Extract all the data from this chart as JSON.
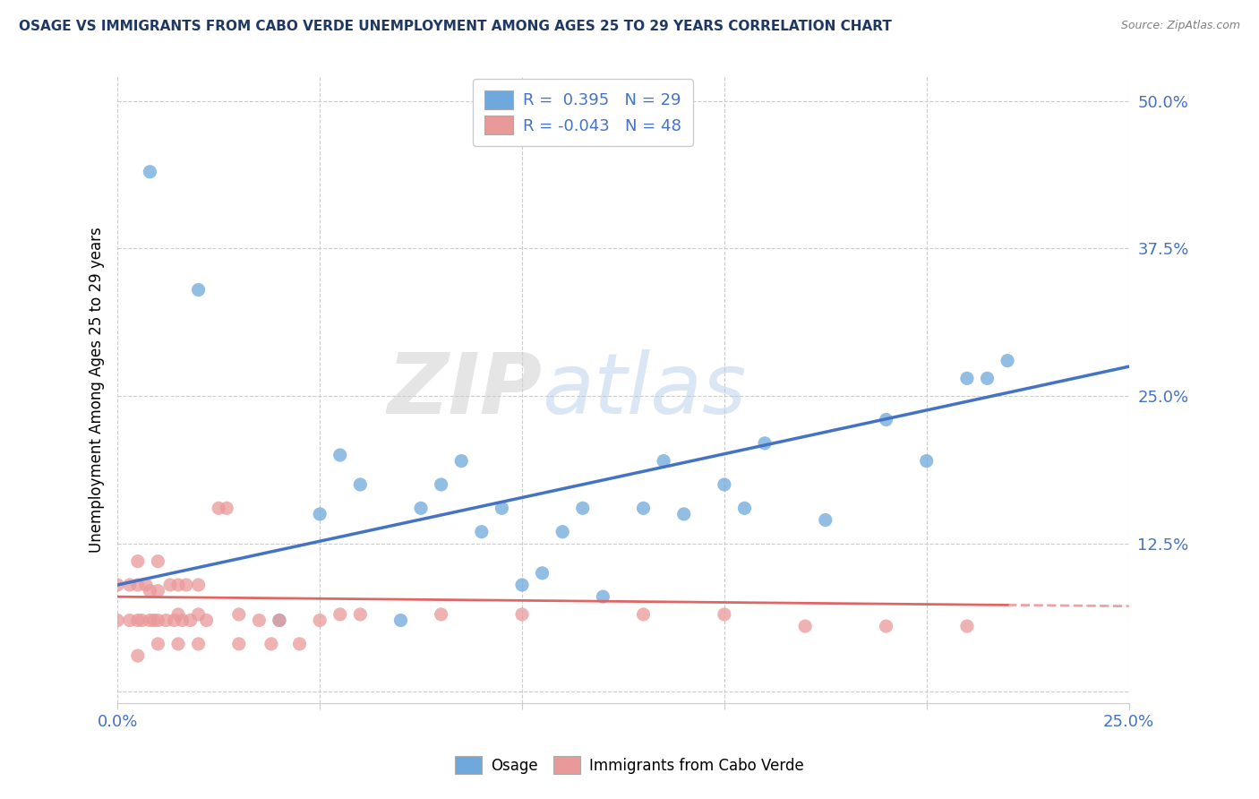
{
  "title": "OSAGE VS IMMIGRANTS FROM CABO VERDE UNEMPLOYMENT AMONG AGES 25 TO 29 YEARS CORRELATION CHART",
  "source_text": "Source: ZipAtlas.com",
  "ylabel": "Unemployment Among Ages 25 to 29 years",
  "xlim": [
    0.0,
    0.25
  ],
  "ylim": [
    -0.01,
    0.52
  ],
  "yticks": [
    0.0,
    0.125,
    0.25,
    0.375,
    0.5
  ],
  "ytick_labels": [
    "",
    "12.5%",
    "25.0%",
    "37.5%",
    "50.0%"
  ],
  "xtick_positions": [
    0.0,
    0.05,
    0.1,
    0.15,
    0.2,
    0.25
  ],
  "xtick_labels": [
    "0.0%",
    "",
    "",
    "",
    "",
    "25.0%"
  ],
  "osage_color": "#6fa8dc",
  "cabo_color": "#ea9999",
  "osage_line_color": "#4472c4",
  "cabo_line_color": "#e06666",
  "cabo_line_dash": "--",
  "R_osage": 0.395,
  "N_osage": 29,
  "R_cabo": -0.043,
  "N_cabo": 48,
  "watermark": "ZIPatlas",
  "osage_x": [
    0.008,
    0.02,
    0.04,
    0.05,
    0.055,
    0.06,
    0.07,
    0.075,
    0.08,
    0.085,
    0.09,
    0.095,
    0.1,
    0.105,
    0.11,
    0.115,
    0.12,
    0.13,
    0.135,
    0.14,
    0.15,
    0.155,
    0.16,
    0.175,
    0.19,
    0.2,
    0.21,
    0.215,
    0.22
  ],
  "osage_y": [
    0.44,
    0.34,
    0.06,
    0.15,
    0.2,
    0.175,
    0.06,
    0.155,
    0.175,
    0.195,
    0.135,
    0.155,
    0.09,
    0.1,
    0.135,
    0.155,
    0.08,
    0.155,
    0.195,
    0.15,
    0.175,
    0.155,
    0.21,
    0.145,
    0.23,
    0.195,
    0.265,
    0.265,
    0.28
  ],
  "cabo_x": [
    0.0,
    0.0,
    0.003,
    0.003,
    0.005,
    0.005,
    0.005,
    0.005,
    0.006,
    0.007,
    0.008,
    0.008,
    0.009,
    0.01,
    0.01,
    0.01,
    0.01,
    0.012,
    0.013,
    0.014,
    0.015,
    0.015,
    0.015,
    0.016,
    0.017,
    0.018,
    0.02,
    0.02,
    0.02,
    0.022,
    0.025,
    0.027,
    0.03,
    0.03,
    0.035,
    0.038,
    0.04,
    0.045,
    0.05,
    0.055,
    0.06,
    0.08,
    0.1,
    0.13,
    0.15,
    0.17,
    0.19,
    0.21
  ],
  "cabo_y": [
    0.06,
    0.09,
    0.06,
    0.09,
    0.03,
    0.06,
    0.09,
    0.11,
    0.06,
    0.09,
    0.06,
    0.085,
    0.06,
    0.04,
    0.06,
    0.085,
    0.11,
    0.06,
    0.09,
    0.06,
    0.04,
    0.065,
    0.09,
    0.06,
    0.09,
    0.06,
    0.04,
    0.065,
    0.09,
    0.06,
    0.155,
    0.155,
    0.04,
    0.065,
    0.06,
    0.04,
    0.06,
    0.04,
    0.06,
    0.065,
    0.065,
    0.065,
    0.065,
    0.065,
    0.065,
    0.055,
    0.055,
    0.055
  ],
  "osage_trend_x": [
    0.0,
    0.25
  ],
  "osage_trend_y": [
    0.09,
    0.275
  ],
  "cabo_trend_x": [
    0.0,
    0.25
  ],
  "cabo_trend_y": [
    0.08,
    0.072
  ]
}
